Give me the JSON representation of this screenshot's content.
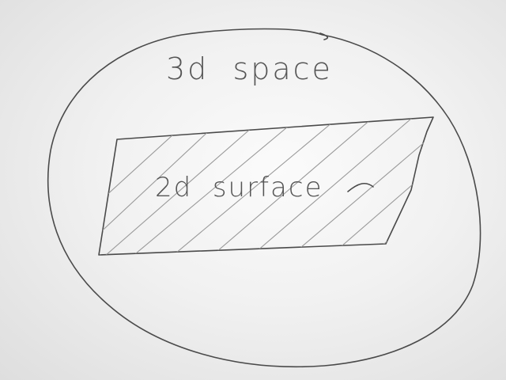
{
  "diagram": {
    "outer_region": {
      "label": "3d  space",
      "shape": "ellipse"
    },
    "inner_region": {
      "label": "2d  surface",
      "shape": "hatched-quadrilateral"
    }
  },
  "colors": {
    "paper": "#f3f3f3",
    "pencil": "#4a4a4a",
    "hatch": "#9a9a9a"
  }
}
